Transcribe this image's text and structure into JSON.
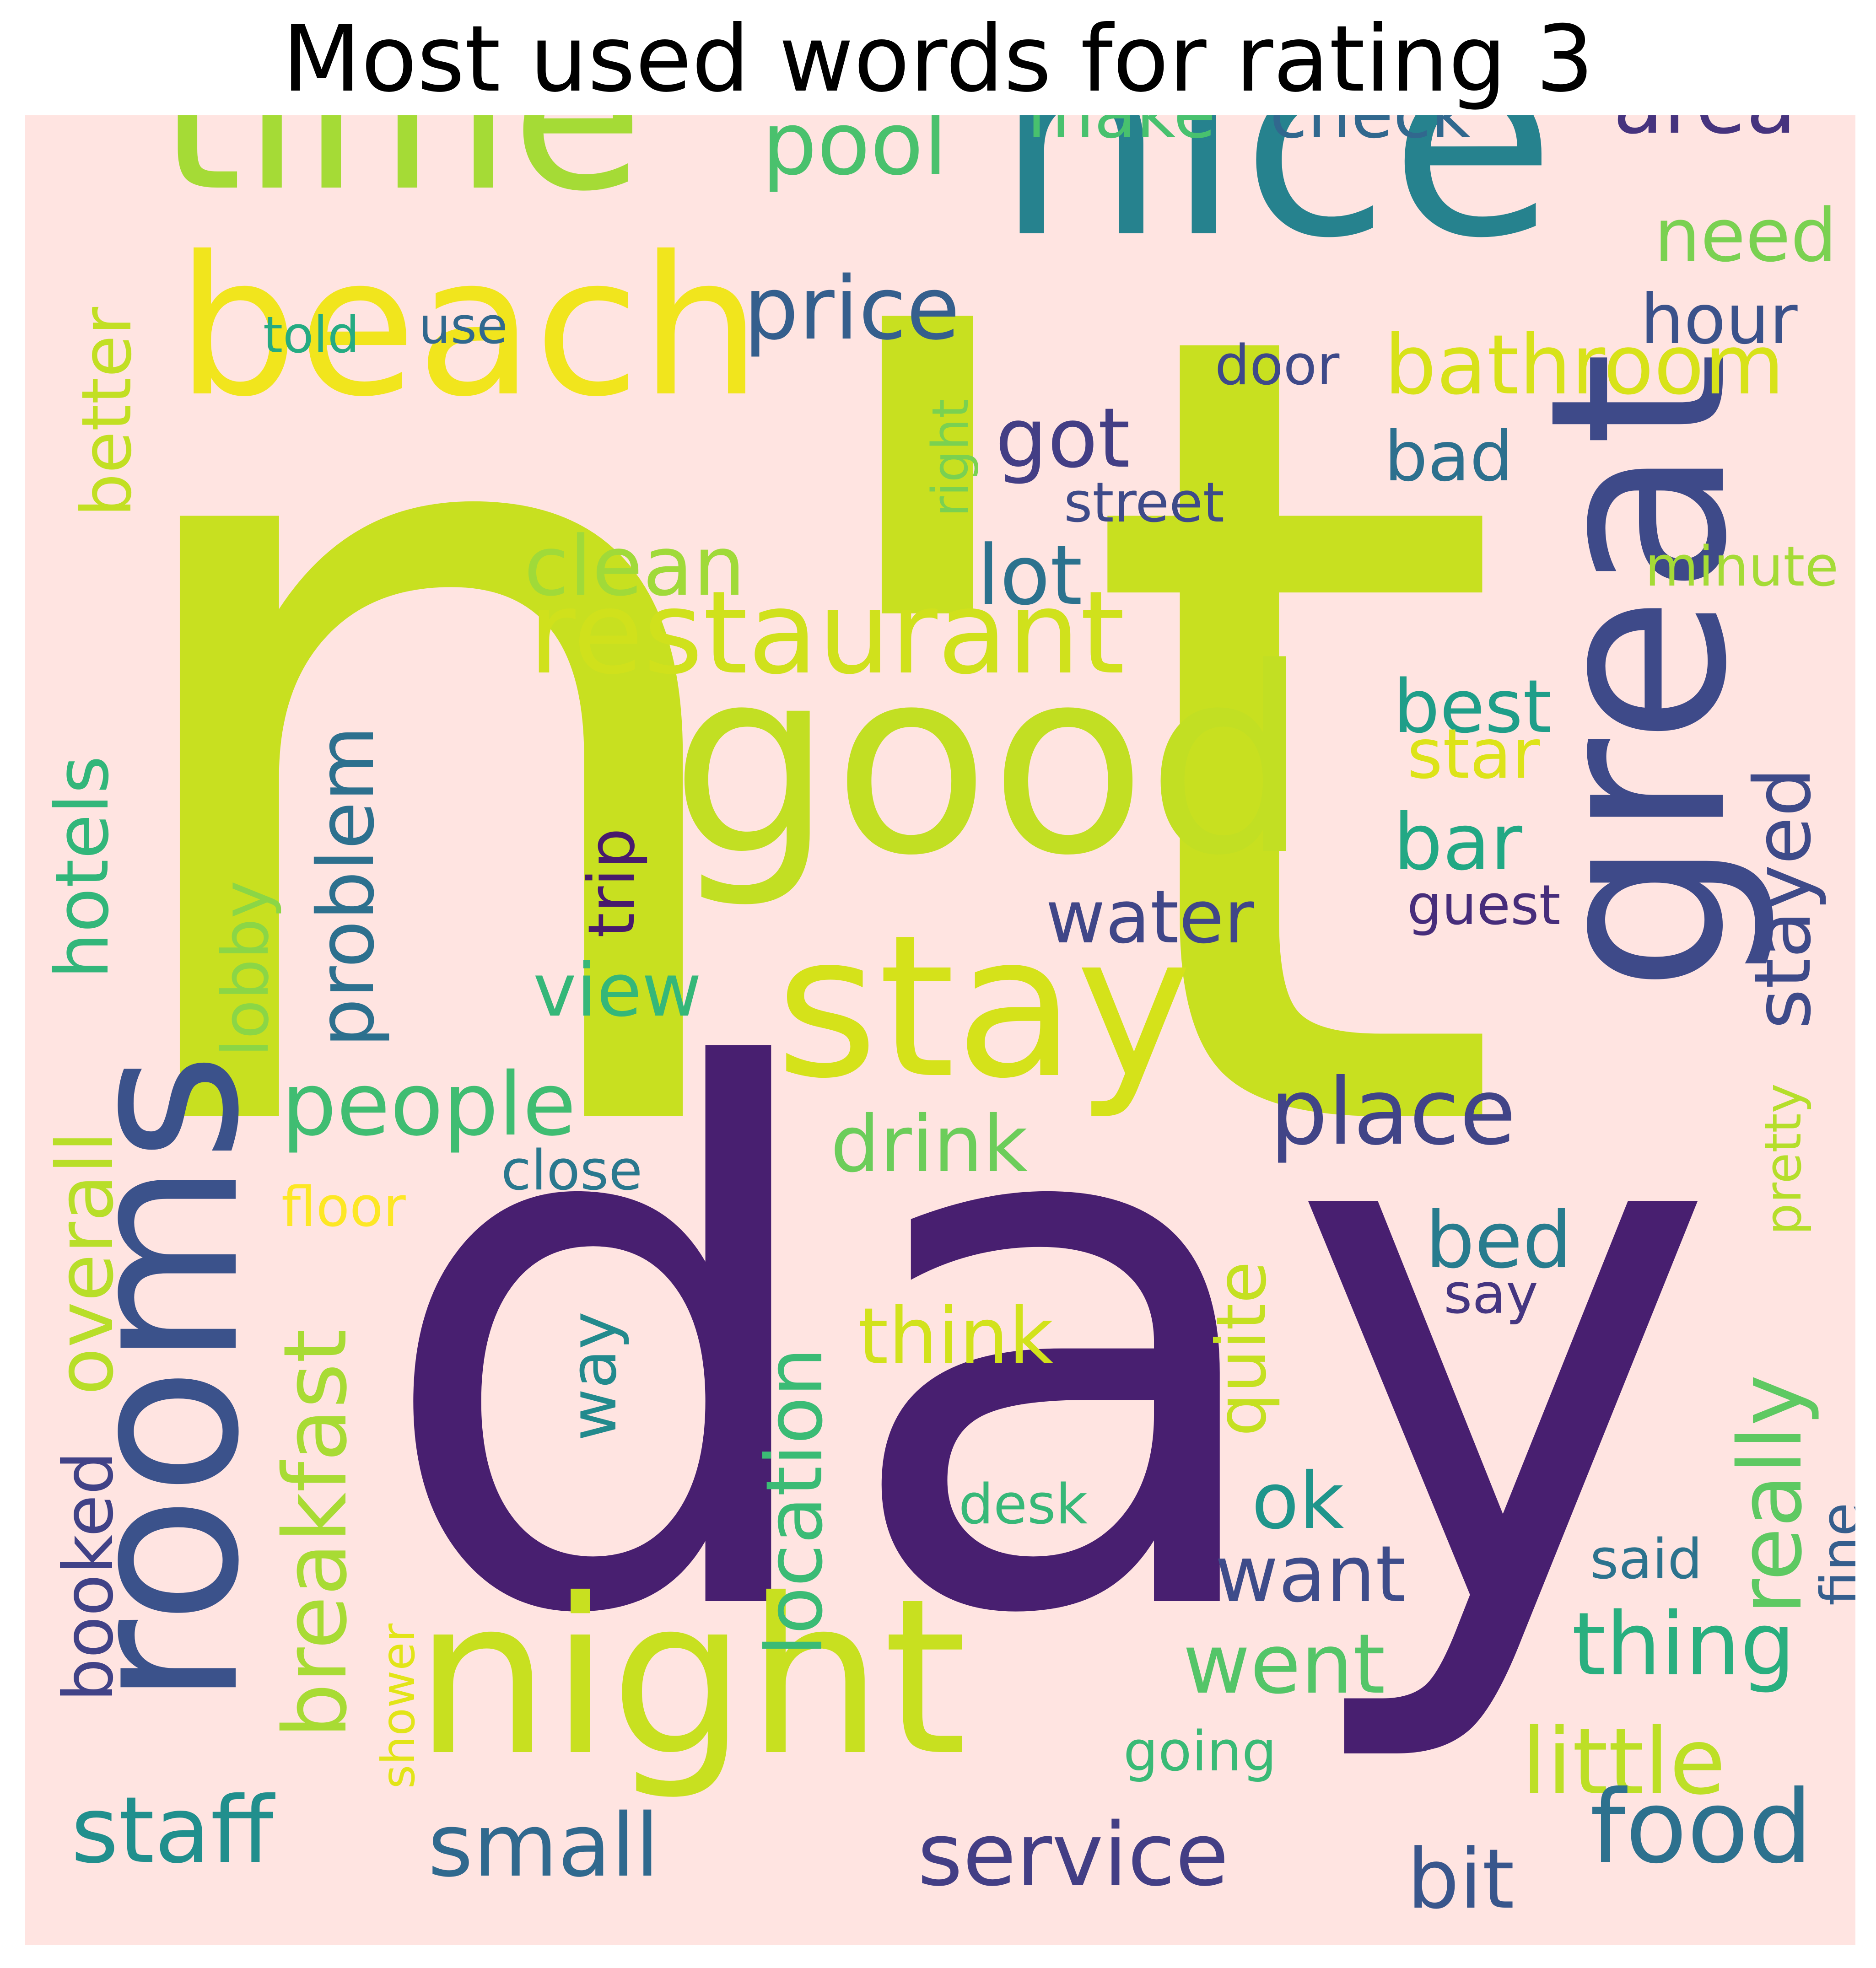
{
  "title": "Most used words for rating 3",
  "background_color": "#ffe4e1",
  "colormap": "viridis",
  "words": [
    {
      "text": "n't",
      "color": "#c8e020"
    },
    {
      "text": "day",
      "color": "#481f70"
    },
    {
      "text": "nice",
      "color": "#26828e"
    },
    {
      "text": "time",
      "color": "#a5db36"
    },
    {
      "text": "good",
      "color": "#c2df23"
    },
    {
      "text": "great",
      "color": "#3e4a89"
    },
    {
      "text": "beach",
      "color": "#f1e51d"
    },
    {
      "text": "rooms",
      "color": "#3b528b"
    },
    {
      "text": "night",
      "color": "#c8e020"
    },
    {
      "text": "stay",
      "color": "#d5e21a"
    },
    {
      "text": "restaurant",
      "color": "#d0e11c"
    },
    {
      "text": "price",
      "color": "#355f8d"
    },
    {
      "text": "pool",
      "color": "#4ac16d"
    },
    {
      "text": "area",
      "color": "#46337e"
    },
    {
      "text": "make",
      "color": "#48c16e"
    },
    {
      "text": "check",
      "color": "#31688e"
    },
    {
      "text": "need",
      "color": "#7ad151"
    },
    {
      "text": "hour",
      "color": "#3b528b"
    },
    {
      "text": "bathroom",
      "color": "#d8e219"
    },
    {
      "text": "got",
      "color": "#433e85"
    },
    {
      "text": "door",
      "color": "#3e4989"
    },
    {
      "text": "street",
      "color": "#3e4a89"
    },
    {
      "text": "bad",
      "color": "#2d708e"
    },
    {
      "text": "right",
      "color": "#7ad151"
    },
    {
      "text": "told",
      "color": "#25ab82"
    },
    {
      "text": "use",
      "color": "#31688e"
    },
    {
      "text": "better",
      "color": "#c2df23"
    },
    {
      "text": "clean",
      "color": "#a0da39"
    },
    {
      "text": "lot",
      "color": "#2c728e"
    },
    {
      "text": "minute",
      "color": "#a5db36"
    },
    {
      "text": "best",
      "color": "#1f9e89"
    },
    {
      "text": "star",
      "color": "#dde318"
    },
    {
      "text": "bar",
      "color": "#22a884"
    },
    {
      "text": "stayed",
      "color": "#3e4a89"
    },
    {
      "text": "guest",
      "color": "#472d7b"
    },
    {
      "text": "hotels",
      "color": "#32b67a"
    },
    {
      "text": "problem",
      "color": "#2d708e"
    },
    {
      "text": "trip",
      "color": "#481a6c"
    },
    {
      "text": "lobby",
      "color": "#8bd646"
    },
    {
      "text": "water",
      "color": "#404688"
    },
    {
      "text": "view",
      "color": "#35b779"
    },
    {
      "text": "people",
      "color": "#40bd72"
    },
    {
      "text": "place",
      "color": "#414487"
    },
    {
      "text": "drink",
      "color": "#6ccd5a"
    },
    {
      "text": "pretty",
      "color": "#b5de2b"
    },
    {
      "text": "close",
      "color": "#2a788e"
    },
    {
      "text": "floor",
      "color": "#fde725"
    },
    {
      "text": "overall",
      "color": "#b8de29"
    },
    {
      "text": "breakfast",
      "color": "#a8db34"
    },
    {
      "text": "bed",
      "color": "#287c8e"
    },
    {
      "text": "say",
      "color": "#453581"
    },
    {
      "text": "really",
      "color": "#5ec962"
    },
    {
      "text": "think",
      "color": "#d2e21b"
    },
    {
      "text": "quite",
      "color": "#c5e021"
    },
    {
      "text": "way",
      "color": "#238a8d"
    },
    {
      "text": "location",
      "color": "#3bbb75"
    },
    {
      "text": "ok",
      "color": "#1f958b"
    },
    {
      "text": "want",
      "color": "#3e4c8a"
    },
    {
      "text": "booked",
      "color": "#414287"
    },
    {
      "text": "desk",
      "color": "#37b878"
    },
    {
      "text": "fine",
      "color": "#355e8d"
    },
    {
      "text": "said",
      "color": "#2c738e"
    },
    {
      "text": "shower",
      "color": "#e2e418"
    },
    {
      "text": "went",
      "color": "#54c568"
    },
    {
      "text": "thing",
      "color": "#29af7f"
    },
    {
      "text": "little",
      "color": "#bddf26"
    },
    {
      "text": "going",
      "color": "#3aba76"
    },
    {
      "text": "staff",
      "color": "#218f8d"
    },
    {
      "text": "small",
      "color": "#30698e"
    },
    {
      "text": "service",
      "color": "#433e85"
    },
    {
      "text": "food",
      "color": "#2d718e"
    },
    {
      "text": "bit",
      "color": "#39568c"
    }
  ]
}
